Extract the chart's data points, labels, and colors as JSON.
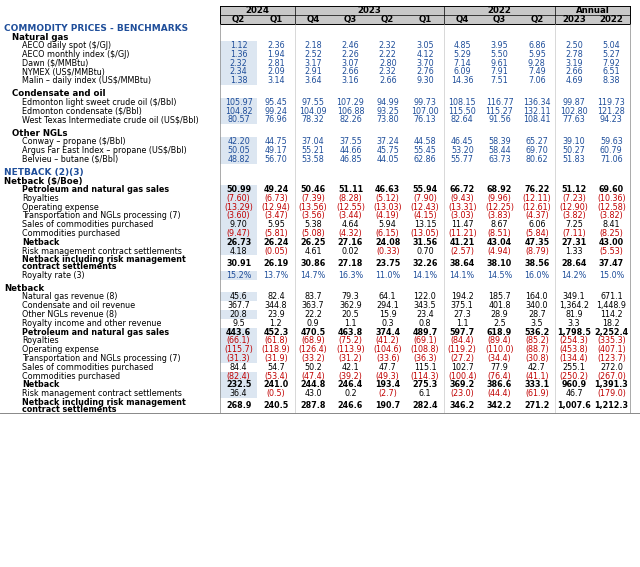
{
  "col_headers_year": [
    [
      "2024",
      0,
      1
    ],
    [
      "2023",
      2,
      5
    ],
    [
      "2022",
      6,
      8
    ],
    [
      "Annual",
      9,
      10
    ]
  ],
  "col_headers_q": [
    "Q2",
    "Q1",
    "Q4",
    "Q3",
    "Q2",
    "Q1",
    "Q4",
    "Q3",
    "Q2",
    "2023",
    "2022"
  ],
  "blue": "#1F4E9A",
  "red": "#C00000",
  "highlight_bg": "#DCE6F1",
  "header_bg": "#C8C8C8",
  "sep_color": "#888888",
  "rows": [
    {
      "type": "section",
      "label": "COMMODITY PRICES - BENCHMARKS",
      "color": "blue"
    },
    {
      "type": "sub",
      "label": "Natural gas",
      "indent": 8
    },
    {
      "type": "data",
      "label": "AECO daily spot ($/GJ)",
      "indent": 18,
      "hi": true,
      "vals": [
        "1.12",
        "2.36",
        "2.18",
        "2.46",
        "2.32",
        "3.05",
        "4.85",
        "3.95",
        "6.86",
        "2.50",
        "5.04"
      ],
      "vcol": "blue"
    },
    {
      "type": "data",
      "label": "AECO monthly index ($/GJ)",
      "indent": 18,
      "hi": true,
      "vals": [
        "1.36",
        "1.94",
        "2.52",
        "2.26",
        "2.22",
        "4.12",
        "5.29",
        "5.50",
        "5.95",
        "2.78",
        "5.27"
      ],
      "vcol": "blue"
    },
    {
      "type": "data",
      "label": "Dawn ($/MMBtu)",
      "indent": 18,
      "hi": true,
      "vals": [
        "2.32",
        "2.81",
        "3.17",
        "3.07",
        "2.80",
        "3.70",
        "7.14",
        "9.61",
        "9.28",
        "3.19",
        "7.92"
      ],
      "vcol": "blue"
    },
    {
      "type": "data",
      "label": "NYMEX (US$/MMBtu)",
      "indent": 18,
      "hi": true,
      "vals": [
        "2.34",
        "2.09",
        "2.91",
        "2.66",
        "2.32",
        "2.76",
        "6.09",
        "7.91",
        "7.49",
        "2.66",
        "6.51"
      ],
      "vcol": "blue"
    },
    {
      "type": "data",
      "label": "Malin – daily index (US$/MMBtu)",
      "indent": 18,
      "hi": true,
      "vals": [
        "1.38",
        "3.14",
        "3.64",
        "3.16",
        "2.66",
        "9.30",
        "14.36",
        "7.51",
        "7.06",
        "4.69",
        "8.38"
      ],
      "vcol": "blue"
    },
    {
      "type": "blank"
    },
    {
      "type": "sub",
      "label": "Condensate and oil",
      "indent": 8
    },
    {
      "type": "data",
      "label": "Edmonton light sweet crude oil ($/Bbl)",
      "indent": 18,
      "hi": true,
      "vals": [
        "105.97",
        "95.45",
        "97.55",
        "107.29",
        "94.99",
        "99.73",
        "108.15",
        "116.77",
        "136.34",
        "99.87",
        "119.73"
      ],
      "vcol": "blue"
    },
    {
      "type": "data",
      "label": "Edmonton condensate ($/Bbl)",
      "indent": 18,
      "hi": true,
      "vals": [
        "104.82",
        "99.24",
        "104.09",
        "106.88",
        "93.25",
        "107.00",
        "115.50",
        "115.27",
        "132.11",
        "102.80",
        "121.28"
      ],
      "vcol": "blue"
    },
    {
      "type": "data",
      "label": "West Texas Intermediate crude oil (US$/Bbl)",
      "indent": 18,
      "hi": true,
      "vals": [
        "80.57",
        "76.96",
        "78.32",
        "82.26",
        "73.80",
        "76.13",
        "82.64",
        "91.56",
        "108.41",
        "77.63",
        "94.23"
      ],
      "vcol": "blue"
    },
    {
      "type": "blank"
    },
    {
      "type": "sub",
      "label": "Other NGLs",
      "indent": 8
    },
    {
      "type": "data",
      "label": "Conway – propane ($/Bbl)",
      "indent": 18,
      "hi": true,
      "vals": [
        "42.20",
        "44.75",
        "37.04",
        "37.55",
        "37.24",
        "44.58",
        "46.45",
        "58.39",
        "65.27",
        "39.10",
        "59.63"
      ],
      "vcol": "blue"
    },
    {
      "type": "data",
      "label": "Argus Far East Index – propane (US$/Bbl)",
      "indent": 18,
      "hi": true,
      "vals": [
        "50.05",
        "49.17",
        "55.21",
        "44.66",
        "45.75",
        "55.45",
        "53.20",
        "58.44",
        "69.70",
        "50.27",
        "60.79"
      ],
      "vcol": "blue"
    },
    {
      "type": "data",
      "label": "Belvieu – butane ($/Bbl)",
      "indent": 18,
      "hi": true,
      "vals": [
        "48.82",
        "56.70",
        "53.58",
        "46.85",
        "44.05",
        "62.86",
        "55.77",
        "63.73",
        "80.62",
        "51.83",
        "71.06"
      ],
      "vcol": "blue"
    },
    {
      "type": "blank"
    },
    {
      "type": "section",
      "label": "NETBACK (2)(3)",
      "color": "blue"
    },
    {
      "type": "sub",
      "label": "Netback ($/Boe)",
      "indent": 0,
      "bold": true
    },
    {
      "type": "data",
      "label": "Petroleum and natural gas sales",
      "indent": 18,
      "hi": true,
      "bold": true,
      "vals": [
        "50.99",
        "49.24",
        "50.46",
        "51.11",
        "46.63",
        "55.94",
        "66.72",
        "68.92",
        "76.22",
        "51.12",
        "69.60"
      ],
      "vcol": "black"
    },
    {
      "type": "data",
      "label": "Royalties",
      "indent": 18,
      "hi": true,
      "vals": [
        "(7.60)",
        "(6.73)",
        "(7.39)",
        "(8.28)",
        "(5.12)",
        "(7.90)",
        "(9.43)",
        "(9.96)",
        "(12.11)",
        "(7.23)",
        "(10.36)"
      ],
      "vcol": "red"
    },
    {
      "type": "data",
      "label": "Operating expense",
      "indent": 18,
      "hi": true,
      "vals": [
        "(13.29)",
        "(12.94)",
        "(13.56)",
        "(12.55)",
        "(13.03)",
        "(12.43)",
        "(13.31)",
        "(12.25)",
        "(12.61)",
        "(12.90)",
        "(12.58)"
      ],
      "vcol": "red"
    },
    {
      "type": "data",
      "label": "Transportation and NGLs processing (7)",
      "indent": 18,
      "hi": true,
      "vals": [
        "(3.60)",
        "(3.47)",
        "(3.56)",
        "(3.44)",
        "(4.19)",
        "(4.15)",
        "(3.03)",
        "(3.83)",
        "(4.37)",
        "(3.82)",
        "(3.82)"
      ],
      "vcol": "red"
    },
    {
      "type": "data",
      "label": "Sales of commodities purchased",
      "indent": 18,
      "hi": true,
      "vals": [
        "9.70",
        "5.95",
        "5.38",
        "4.64",
        "5.94",
        "13.15",
        "11.47",
        "8.67",
        "6.06",
        "7.25",
        "8.41"
      ],
      "vcol": "black"
    },
    {
      "type": "data",
      "label": "Commodities purchased",
      "indent": 18,
      "hi": true,
      "vals": [
        "(9.47)",
        "(5.81)",
        "(5.08)",
        "(4.32)",
        "(6.15)",
        "(13.05)",
        "(11.21)",
        "(8.51)",
        "(5.84)",
        "(7.11)",
        "(8.25)"
      ],
      "vcol": "red"
    },
    {
      "type": "data",
      "label": "Netback",
      "indent": 18,
      "hi": true,
      "bold": true,
      "vals": [
        "26.73",
        "26.24",
        "26.25",
        "27.16",
        "24.08",
        "31.56",
        "41.21",
        "43.04",
        "47.35",
        "27.31",
        "43.00"
      ],
      "vcol": "black"
    },
    {
      "type": "data",
      "label": "Risk management contract settlements",
      "indent": 18,
      "hi": true,
      "vals": [
        "4.18",
        "(0.05)",
        "4.61",
        "0.02",
        "(0.33)",
        "0.70",
        "(2.57)",
        "(4.94)",
        "(8.79)",
        "1.33",
        "(5.53)"
      ],
      "vcol": "neg_red"
    },
    {
      "type": "data2",
      "label": "Netback including risk management\ncontract settlements",
      "indent": 18,
      "hi": false,
      "bold": true,
      "vals": [
        "30.91",
        "26.19",
        "30.86",
        "27.18",
        "23.75",
        "32.26",
        "38.64",
        "38.10",
        "38.56",
        "28.64",
        "37.47"
      ],
      "vcol": "black"
    },
    {
      "type": "data",
      "label": "Royalty rate (3)",
      "indent": 18,
      "hi": true,
      "vals": [
        "15.2%",
        "13.7%",
        "14.7%",
        "16.3%",
        "11.0%",
        "14.1%",
        "14.1%",
        "14.5%",
        "16.0%",
        "14.2%",
        "15.0%"
      ],
      "vcol": "blue"
    },
    {
      "type": "blank"
    },
    {
      "type": "sub",
      "label": "Netback",
      "indent": 0,
      "bold": true
    },
    {
      "type": "data",
      "label": "Natural gas revenue (8)",
      "indent": 18,
      "hi": true,
      "vals": [
        "45.6",
        "82.4",
        "83.7",
        "79.3",
        "64.1",
        "122.0",
        "194.2",
        "185.7",
        "164.0",
        "349.1",
        "671.1"
      ],
      "vcol": "black"
    },
    {
      "type": "data",
      "label": "Condensate and oil revenue",
      "indent": 18,
      "hi": false,
      "vals": [
        "367.7",
        "344.8",
        "363.7",
        "362.9",
        "294.1",
        "343.5",
        "375.1",
        "401.8",
        "340.0",
        "1,364.2",
        "1,448.9"
      ],
      "vcol": "black"
    },
    {
      "type": "data",
      "label": "Other NGLs revenue (8)",
      "indent": 18,
      "hi": true,
      "vals": [
        "20.8",
        "23.9",
        "22.2",
        "20.5",
        "15.9",
        "23.4",
        "27.3",
        "28.9",
        "28.7",
        "81.9",
        "114.2"
      ],
      "vcol": "black"
    },
    {
      "type": "data",
      "label": "Royalty income and other revenue",
      "indent": 18,
      "hi": false,
      "vals": [
        "9.5",
        "1.2",
        "0.9",
        "1.1",
        "0.3",
        "0.8",
        "1.1",
        "2.5",
        "3.5",
        "3.3",
        "18.2"
      ],
      "vcol": "black"
    },
    {
      "type": "data",
      "label": "Petroleum and natural gas sales",
      "indent": 18,
      "hi": true,
      "bold": true,
      "vals": [
        "443.6",
        "452.3",
        "470.5",
        "463.8",
        "374.4",
        "489.7",
        "597.7",
        "618.9",
        "536.2",
        "1,798.5",
        "2,252.4"
      ],
      "vcol": "black"
    },
    {
      "type": "data",
      "label": "Royalties",
      "indent": 18,
      "hi": true,
      "vals": [
        "(66.1)",
        "(61.8)",
        "(68.9)",
        "(75.2)",
        "(41.2)",
        "(69.1)",
        "(84.4)",
        "(89.4)",
        "(85.2)",
        "(254.3)",
        "(335.3)"
      ],
      "vcol": "red"
    },
    {
      "type": "data",
      "label": "Operating expense",
      "indent": 18,
      "hi": true,
      "vals": [
        "(115.7)",
        "(118.9)",
        "(126.4)",
        "(113.9)",
        "(104.6)",
        "(108.8)",
        "(119.2)",
        "(110.0)",
        "(88.7)",
        "(453.8)",
        "(407.1)"
      ],
      "vcol": "red"
    },
    {
      "type": "data",
      "label": "Transportation and NGLs processing (7)",
      "indent": 18,
      "hi": true,
      "vals": [
        "(31.3)",
        "(31.9)",
        "(33.2)",
        "(31.2)",
        "(33.6)",
        "(36.3)",
        "(27.2)",
        "(34.4)",
        "(30.8)",
        "(134.4)",
        "(123.7)"
      ],
      "vcol": "red"
    },
    {
      "type": "data",
      "label": "Sales of commodities purchased",
      "indent": 18,
      "hi": false,
      "vals": [
        "84.4",
        "54.7",
        "50.2",
        "42.1",
        "47.7",
        "115.1",
        "102.7",
        "77.9",
        "42.7",
        "255.1",
        "272.0"
      ],
      "vcol": "black"
    },
    {
      "type": "data",
      "label": "Commodities purchased",
      "indent": 18,
      "hi": true,
      "vals": [
        "(82.4)",
        "(53.4)",
        "(47.4)",
        "(39.2)",
        "(49.3)",
        "(114.3)",
        "(100.4)",
        "(76.4)",
        "(41.1)",
        "(250.2)",
        "(267.0)"
      ],
      "vcol": "red"
    },
    {
      "type": "data",
      "label": "Netback",
      "indent": 18,
      "hi": true,
      "bold": true,
      "vals": [
        "232.5",
        "241.0",
        "244.8",
        "246.4",
        "193.4",
        "275.3",
        "369.2",
        "386.6",
        "333.1",
        "960.9",
        "1,391.3"
      ],
      "vcol": "black"
    },
    {
      "type": "data",
      "label": "Risk management contract settlements",
      "indent": 18,
      "hi": true,
      "vals": [
        "36.4",
        "(0.5)",
        "43.0",
        "0.2",
        "(2.7)",
        "6.1",
        "(23.0)",
        "(44.4)",
        "(61.9)",
        "46.7",
        "(179.0)"
      ],
      "vcol": "neg_red"
    },
    {
      "type": "data2",
      "label": "Netback including risk management\ncontract settlements",
      "indent": 18,
      "hi": false,
      "bold": true,
      "vals": [
        "268.9",
        "240.5",
        "287.8",
        "246.6",
        "190.7",
        "282.4",
        "346.2",
        "342.2",
        "271.2",
        "1,007.6",
        "1,212.3"
      ],
      "vcol": "black"
    }
  ]
}
